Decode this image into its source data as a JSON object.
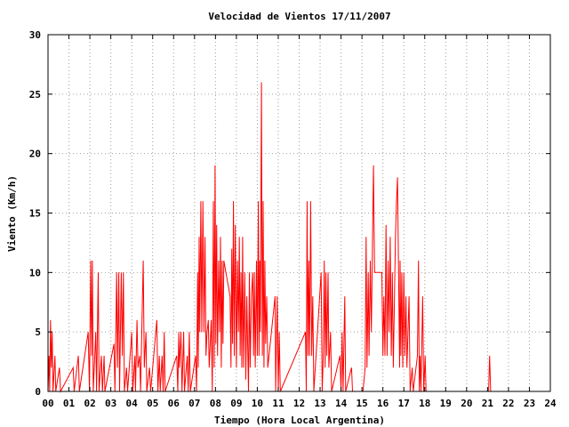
{
  "chart_data": {
    "type": "line",
    "title": "Velocidad de Vientos 17/11/2007",
    "xlabel": "Tiempo (Hora Local Argentina)",
    "ylabel": "Viento (Km/h)",
    "xlim": [
      0,
      24
    ],
    "ylim": [
      0,
      30
    ],
    "x_ticks": [
      "00",
      "01",
      "02",
      "03",
      "04",
      "05",
      "06",
      "07",
      "08",
      "09",
      "10",
      "11",
      "12",
      "13",
      "14",
      "15",
      "16",
      "17",
      "18",
      "19",
      "20",
      "21",
      "22",
      "23",
      "24"
    ],
    "y_ticks": [
      "0",
      "5",
      "10",
      "15",
      "20",
      "25",
      "30"
    ],
    "grid": true,
    "line_color": "#ff0000",
    "series": [
      {
        "values": [
          [
            0.0,
            0
          ],
          [
            0.05,
            3
          ],
          [
            0.08,
            0
          ],
          [
            0.12,
            6
          ],
          [
            0.16,
            2
          ],
          [
            0.2,
            5
          ],
          [
            0.24,
            0
          ],
          [
            0.33,
            3
          ],
          [
            0.37,
            0
          ],
          [
            0.55,
            2
          ],
          [
            0.6,
            0
          ],
          [
            1.2,
            2
          ],
          [
            1.25,
            0
          ],
          [
            1.45,
            3
          ],
          [
            1.5,
            0
          ],
          [
            1.92,
            5
          ],
          [
            1.98,
            0
          ],
          [
            2.04,
            11
          ],
          [
            2.08,
            3
          ],
          [
            2.12,
            11
          ],
          [
            2.16,
            0
          ],
          [
            2.28,
            5
          ],
          [
            2.32,
            0
          ],
          [
            2.4,
            10
          ],
          [
            2.44,
            0
          ],
          [
            2.55,
            3
          ],
          [
            2.6,
            0
          ],
          [
            2.68,
            3
          ],
          [
            2.72,
            0
          ],
          [
            3.15,
            4
          ],
          [
            3.2,
            0
          ],
          [
            3.28,
            10
          ],
          [
            3.32,
            2
          ],
          [
            3.38,
            10
          ],
          [
            3.42,
            0
          ],
          [
            3.5,
            10
          ],
          [
            3.55,
            3
          ],
          [
            3.6,
            10
          ],
          [
            3.65,
            0
          ],
          [
            3.75,
            2
          ],
          [
            3.8,
            0
          ],
          [
            4.0,
            5
          ],
          [
            4.05,
            0
          ],
          [
            4.15,
            3
          ],
          [
            4.18,
            0
          ],
          [
            4.25,
            6
          ],
          [
            4.3,
            2
          ],
          [
            4.38,
            3
          ],
          [
            4.42,
            0
          ],
          [
            4.55,
            11
          ],
          [
            4.6,
            2
          ],
          [
            4.68,
            5
          ],
          [
            4.72,
            0
          ],
          [
            4.85,
            2
          ],
          [
            4.9,
            0
          ],
          [
            5.2,
            6
          ],
          [
            5.25,
            0
          ],
          [
            5.32,
            3
          ],
          [
            5.36,
            0
          ],
          [
            5.45,
            3
          ],
          [
            5.5,
            0
          ],
          [
            5.55,
            5
          ],
          [
            5.6,
            0
          ],
          [
            6.15,
            3
          ],
          [
            6.2,
            0
          ],
          [
            6.25,
            5
          ],
          [
            6.28,
            2
          ],
          [
            6.35,
            5
          ],
          [
            6.4,
            0
          ],
          [
            6.48,
            5
          ],
          [
            6.52,
            0
          ],
          [
            6.65,
            3
          ],
          [
            6.7,
            0
          ],
          [
            6.75,
            5
          ],
          [
            6.8,
            0
          ],
          [
            7.05,
            3
          ],
          [
            7.1,
            0
          ],
          [
            7.15,
            10
          ],
          [
            7.18,
            2
          ],
          [
            7.22,
            13
          ],
          [
            7.25,
            5
          ],
          [
            7.3,
            16
          ],
          [
            7.35,
            5
          ],
          [
            7.4,
            16
          ],
          [
            7.45,
            5
          ],
          [
            7.5,
            13
          ],
          [
            7.55,
            3
          ],
          [
            7.6,
            5
          ],
          [
            7.66,
            6
          ],
          [
            7.7,
            2
          ],
          [
            7.8,
            6
          ],
          [
            7.85,
            0
          ],
          [
            7.9,
            16
          ],
          [
            7.94,
            2
          ],
          [
            7.98,
            19
          ],
          [
            8.02,
            4
          ],
          [
            8.06,
            14
          ],
          [
            8.1,
            3
          ],
          [
            8.15,
            11
          ],
          [
            8.2,
            5
          ],
          [
            8.24,
            13
          ],
          [
            8.28,
            2
          ],
          [
            8.32,
            11
          ],
          [
            8.36,
            4
          ],
          [
            8.4,
            11
          ],
          [
            8.5,
            10
          ],
          [
            8.7,
            8
          ],
          [
            8.74,
            2
          ],
          [
            8.78,
            12
          ],
          [
            8.82,
            4
          ],
          [
            8.86,
            16
          ],
          [
            8.9,
            3
          ],
          [
            8.95,
            14
          ],
          [
            9.0,
            2
          ],
          [
            9.05,
            11
          ],
          [
            9.1,
            5
          ],
          [
            9.14,
            13
          ],
          [
            9.18,
            3
          ],
          [
            9.22,
            10
          ],
          [
            9.26,
            2
          ],
          [
            9.3,
            13
          ],
          [
            9.34,
            2
          ],
          [
            9.4,
            10
          ],
          [
            9.45,
            1
          ],
          [
            9.5,
            8
          ],
          [
            9.58,
            0
          ],
          [
            9.62,
            10
          ],
          [
            9.66,
            2
          ],
          [
            9.72,
            8
          ],
          [
            9.78,
            10
          ],
          [
            9.82,
            3
          ],
          [
            9.86,
            10
          ],
          [
            9.9,
            2
          ],
          [
            9.96,
            11
          ],
          [
            10.0,
            3
          ],
          [
            10.05,
            16
          ],
          [
            10.08,
            3
          ],
          [
            10.12,
            11
          ],
          [
            10.15,
            5
          ],
          [
            10.2,
            26
          ],
          [
            10.24,
            3
          ],
          [
            10.28,
            16
          ],
          [
            10.32,
            2
          ],
          [
            10.36,
            11
          ],
          [
            10.4,
            4
          ],
          [
            10.45,
            8
          ],
          [
            10.5,
            2
          ],
          [
            10.85,
            8
          ],
          [
            10.88,
            0
          ],
          [
            10.95,
            8
          ],
          [
            11.0,
            0
          ],
          [
            11.05,
            5
          ],
          [
            11.1,
            0
          ],
          [
            12.3,
            5
          ],
          [
            12.34,
            0
          ],
          [
            12.38,
            16
          ],
          [
            12.42,
            3
          ],
          [
            12.46,
            11
          ],
          [
            12.5,
            3
          ],
          [
            12.55,
            16
          ],
          [
            12.6,
            3
          ],
          [
            12.65,
            8
          ],
          [
            12.7,
            0
          ],
          [
            13.05,
            10
          ],
          [
            13.1,
            0
          ],
          [
            13.15,
            3
          ],
          [
            13.2,
            11
          ],
          [
            13.24,
            2
          ],
          [
            13.28,
            10
          ],
          [
            13.32,
            3
          ],
          [
            13.38,
            10
          ],
          [
            13.42,
            2
          ],
          [
            13.5,
            5
          ],
          [
            13.55,
            0
          ],
          [
            13.95,
            3
          ],
          [
            14.0,
            0
          ],
          [
            14.05,
            5
          ],
          [
            14.1,
            0
          ],
          [
            14.18,
            8
          ],
          [
            14.22,
            0
          ],
          [
            14.5,
            2
          ],
          [
            14.55,
            0
          ],
          [
            15.05,
            0
          ],
          [
            15.15,
            2
          ],
          [
            15.2,
            13
          ],
          [
            15.24,
            2
          ],
          [
            15.3,
            10
          ],
          [
            15.34,
            3
          ],
          [
            15.4,
            11
          ],
          [
            15.45,
            5
          ],
          [
            15.55,
            19
          ],
          [
            15.6,
            10
          ],
          [
            15.8,
            10
          ],
          [
            15.95,
            10
          ],
          [
            16.0,
            3
          ],
          [
            16.05,
            8
          ],
          [
            16.1,
            3
          ],
          [
            16.15,
            14
          ],
          [
            16.2,
            3
          ],
          [
            16.25,
            11
          ],
          [
            16.3,
            5
          ],
          [
            16.35,
            13
          ],
          [
            16.4,
            3
          ],
          [
            16.45,
            10
          ],
          [
            16.5,
            2
          ],
          [
            16.6,
            13
          ],
          [
            16.65,
            16
          ],
          [
            16.7,
            18
          ],
          [
            16.75,
            10
          ],
          [
            16.8,
            2
          ],
          [
            16.82,
            11
          ],
          [
            16.86,
            3
          ],
          [
            16.9,
            10
          ],
          [
            16.95,
            2
          ],
          [
            17.0,
            10
          ],
          [
            17.05,
            3
          ],
          [
            17.1,
            8
          ],
          [
            17.15,
            2
          ],
          [
            17.25,
            8
          ],
          [
            17.3,
            0
          ],
          [
            17.4,
            2
          ],
          [
            17.45,
            0
          ],
          [
            17.65,
            3
          ],
          [
            17.7,
            11
          ],
          [
            17.74,
            0
          ],
          [
            17.78,
            3
          ],
          [
            17.82,
            0
          ],
          [
            17.9,
            8
          ],
          [
            17.95,
            0
          ],
          [
            18.02,
            3
          ],
          [
            18.06,
            0
          ],
          [
            21.05,
            0
          ],
          [
            21.1,
            3
          ],
          [
            21.15,
            0
          ]
        ]
      }
    ]
  }
}
